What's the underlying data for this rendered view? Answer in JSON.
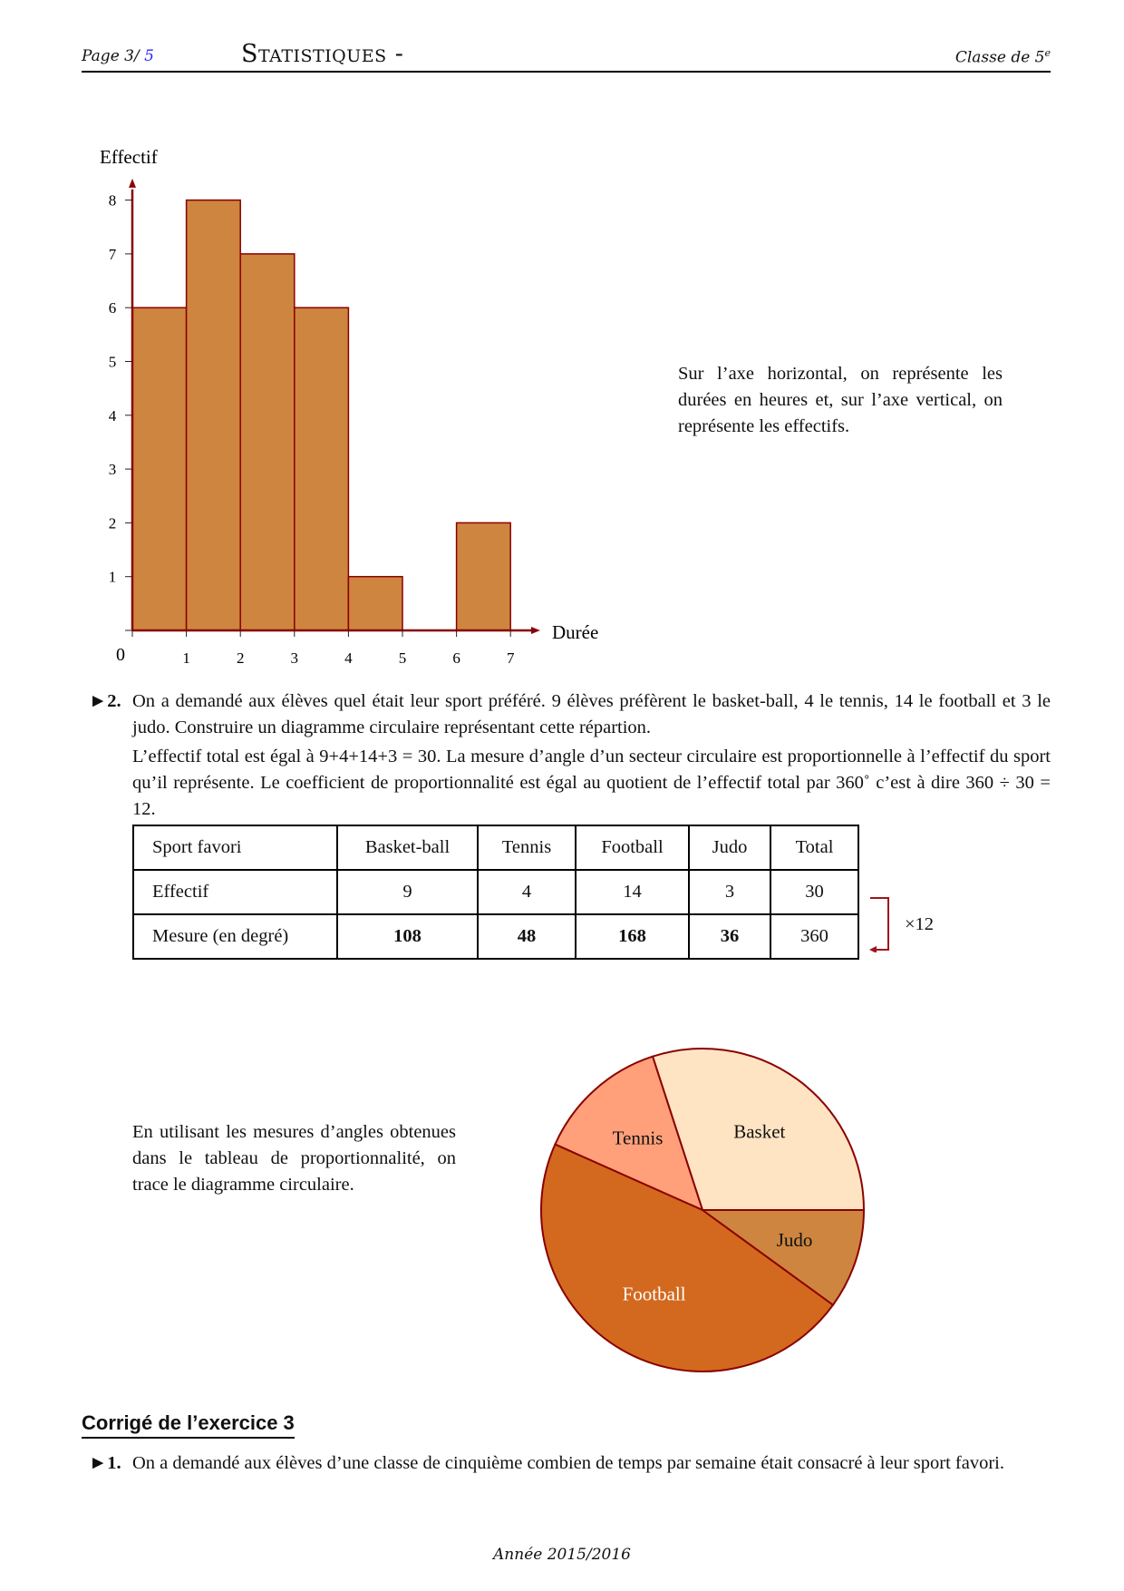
{
  "header": {
    "page_label": "Page 3/",
    "page_total": "5",
    "title": "Statistiques -",
    "class_label": "Classe de 5",
    "class_sup": "e"
  },
  "chart_data": [
    {
      "type": "bar",
      "subtype": "histogram",
      "ylabel": "Effectif",
      "xlabel": "Durée",
      "origin_label": "0",
      "x_ticks": [
        "1",
        "2",
        "3",
        "4",
        "5",
        "6",
        "7"
      ],
      "y_ticks": [
        "1",
        "2",
        "3",
        "4",
        "5",
        "6",
        "7",
        "8"
      ],
      "bins": [
        [
          0,
          1
        ],
        [
          1,
          2
        ],
        [
          2,
          3
        ],
        [
          3,
          4
        ],
        [
          4,
          5
        ],
        [
          5,
          6
        ],
        [
          6,
          7
        ]
      ],
      "values": [
        6,
        8,
        7,
        6,
        1,
        0,
        2
      ],
      "xlim": [
        0,
        7.5
      ],
      "ylim": [
        0,
        8.4
      ],
      "grid": false,
      "colors": {
        "fill": "#CD853F",
        "edge": "#8B0000"
      }
    },
    {
      "type": "pie",
      "categories": [
        "Basket",
        "Tennis",
        "Football",
        "Judo"
      ],
      "values": [
        108,
        48,
        168,
        36
      ],
      "colors": [
        "#FFE4C4",
        "#FFA07A",
        "#D2691E",
        "#CD853F"
      ],
      "label_colors": [
        "#111111",
        "#111111",
        "#FFFFFF",
        "#111111"
      ],
      "edge_color": "#8B0000"
    }
  ],
  "histogram_note": "Sur l’axe horizontal, on représente les durées en heures et, sur l’axe vertical, on représente les effectifs.",
  "q2": {
    "marker": "►2.",
    "statement": "On a demandé aux élèves quel était leur sport préféré. 9 élèves préfèrent le basket-ball, 4 le tennis, 14 le football et 3 le judo. Construire un diagramme circulaire représentant cette répartion.",
    "explanation": "L’effectif total est égal à 9+4+14+3 = 30. La mesure d’angle d’un secteur circulaire est proportionnelle à l’effectif du sport qu’il représente. Le coefficient de proportionnalité est égal au quotient de l’effectif total par 360˚ c’est à dire 360 ÷ 30 = 12."
  },
  "table": {
    "headers": [
      "Sport favori",
      "Basket-ball",
      "Tennis",
      "Football",
      "Judo",
      "Total"
    ],
    "rows": [
      [
        "Effectif",
        "9",
        "4",
        "14",
        "3",
        "30"
      ],
      [
        "Mesure (en degré)",
        "108",
        "48",
        "168",
        "36",
        "360"
      ]
    ],
    "multiplier": "×12"
  },
  "pie_note": "En utilisant les mesures d’angles obtenues dans le tableau de proportionnalité, on trace le diagramme circulaire.",
  "corrige": {
    "heading": "Corrigé de l’exercice 3",
    "marker": "►1.",
    "text": "On a demandé aux élèves d’une classe de cinquième combien de temps par semaine était consacré à leur sport favori."
  },
  "footer": "Année 2015/2016"
}
